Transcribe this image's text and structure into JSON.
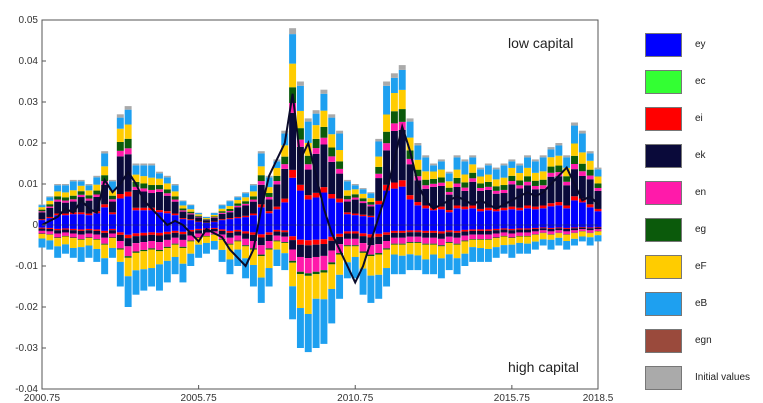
{
  "chart_data": {
    "type": "bar",
    "stacked": true,
    "title": "",
    "xlabel": "",
    "ylabel": "",
    "xlim": [
      2000.75,
      2018.5
    ],
    "ylim": [
      -0.04,
      0.05
    ],
    "x_ticks": [
      "2000.75",
      "2005.75",
      "2010.75",
      "2015.75",
      "2018.5"
    ],
    "y_ticks": [
      "0.05",
      "0.04",
      "0.03",
      "0.02",
      "0.01",
      "0",
      "-0.01",
      "-0.02",
      "-0.03",
      "-0.04"
    ],
    "annotations": {
      "top_right": "low capital",
      "bottom_right": "high capital"
    },
    "legend_position": "right",
    "series": [
      {
        "name": "ey",
        "color": "#0000ff"
      },
      {
        "name": "ec",
        "color": "#33ff33"
      },
      {
        "name": "ei",
        "color": "#ff0000"
      },
      {
        "name": "ek",
        "color": "#0a0a3a"
      },
      {
        "name": "en",
        "color": "#ff1aaa"
      },
      {
        "name": "eg",
        "color": "#0b5a0b"
      },
      {
        "name": "eF",
        "color": "#ffcc00"
      },
      {
        "name": "eB",
        "color": "#1ea0f0"
      },
      {
        "name": "egn",
        "color": "#9a4a3c"
      },
      {
        "name": "Initial values",
        "color": "#aaaaaa"
      }
    ],
    "periods": [
      [
        2000.75,
        0.005,
        -0.0055
      ],
      [
        2001.0,
        0.007,
        -0.006
      ],
      [
        2001.25,
        0.01,
        -0.008
      ],
      [
        2001.5,
        0.01,
        -0.007
      ],
      [
        2001.75,
        0.011,
        -0.008
      ],
      [
        2002.0,
        0.011,
        -0.009
      ],
      [
        2002.25,
        0.01,
        -0.008
      ],
      [
        2002.5,
        0.012,
        -0.009
      ],
      [
        2002.75,
        0.018,
        -0.012
      ],
      [
        2003.0,
        0.011,
        -0.008
      ],
      [
        2003.25,
        0.027,
        -0.015
      ],
      [
        2003.5,
        0.029,
        -0.02
      ],
      [
        2003.75,
        0.015,
        -0.017
      ],
      [
        2004.0,
        0.015,
        -0.016
      ],
      [
        2004.25,
        0.015,
        -0.015
      ],
      [
        2004.5,
        0.013,
        -0.016
      ],
      [
        2004.75,
        0.012,
        -0.014
      ],
      [
        2005.0,
        0.01,
        -0.012
      ],
      [
        2005.25,
        0.006,
        -0.014
      ],
      [
        2005.5,
        0.005,
        -0.01
      ],
      [
        2005.75,
        0.003,
        -0.008
      ],
      [
        2006.0,
        0.002,
        -0.007
      ],
      [
        2006.25,
        0.003,
        -0.006
      ],
      [
        2006.5,
        0.005,
        -0.009
      ],
      [
        2006.75,
        0.006,
        -0.012
      ],
      [
        2007.0,
        0.007,
        -0.01
      ],
      [
        2007.25,
        0.008,
        -0.013
      ],
      [
        2007.5,
        0.01,
        -0.015
      ],
      [
        2007.75,
        0.018,
        -0.019
      ],
      [
        2008.0,
        0.012,
        -0.015
      ],
      [
        2008.25,
        0.016,
        -0.01
      ],
      [
        2008.5,
        0.023,
        -0.011
      ],
      [
        2008.75,
        0.048,
        -0.023
      ],
      [
        2009.0,
        0.035,
        -0.03
      ],
      [
        2009.25,
        0.026,
        -0.031
      ],
      [
        2009.5,
        0.028,
        -0.03
      ],
      [
        2009.75,
        0.033,
        -0.029
      ],
      [
        2010.0,
        0.027,
        -0.024
      ],
      [
        2010.25,
        0.023,
        -0.018
      ],
      [
        2010.5,
        0.011,
        -0.013
      ],
      [
        2010.75,
        0.01,
        -0.013
      ],
      [
        2011.0,
        0.009,
        -0.017
      ],
      [
        2011.25,
        0.008,
        -0.019
      ],
      [
        2011.5,
        0.021,
        -0.018
      ],
      [
        2011.75,
        0.035,
        -0.015
      ],
      [
        2012.0,
        0.037,
        -0.012
      ],
      [
        2012.25,
        0.039,
        -0.012
      ],
      [
        2012.5,
        0.026,
        -0.011
      ],
      [
        2012.75,
        0.02,
        -0.011
      ],
      [
        2013.0,
        0.017,
        -0.012
      ],
      [
        2013.25,
        0.015,
        -0.012
      ],
      [
        2013.5,
        0.016,
        -0.013
      ],
      [
        2013.75,
        0.013,
        -0.011
      ],
      [
        2014.0,
        0.017,
        -0.012
      ],
      [
        2014.25,
        0.016,
        -0.01
      ],
      [
        2014.5,
        0.017,
        -0.009
      ],
      [
        2014.75,
        0.014,
        -0.009
      ],
      [
        2015.0,
        0.015,
        -0.009
      ],
      [
        2015.25,
        0.014,
        -0.008
      ],
      [
        2015.5,
        0.015,
        -0.007
      ],
      [
        2015.75,
        0.016,
        -0.008
      ],
      [
        2016.0,
        0.015,
        -0.007
      ],
      [
        2016.25,
        0.017,
        -0.007
      ],
      [
        2016.5,
        0.016,
        -0.006
      ],
      [
        2016.75,
        0.017,
        -0.005
      ],
      [
        2017.0,
        0.019,
        -0.006
      ],
      [
        2017.25,
        0.02,
        -0.005
      ],
      [
        2017.5,
        0.017,
        -0.006
      ],
      [
        2017.75,
        0.025,
        -0.005
      ],
      [
        2018.0,
        0.023,
        -0.004
      ],
      [
        2018.25,
        0.018,
        -0.005
      ],
      [
        2018.5,
        0.014,
        -0.004
      ]
    ],
    "line": [
      0.0,
      0.001,
      0.002,
      0.004,
      0.003,
      0.006,
      0.004,
      0.003,
      0.011,
      0.008,
      0.01,
      0.013,
      0.01,
      0.006,
      0.004,
      0.002,
      0.0,
      0.001,
      0.0,
      -0.002,
      -0.004,
      -0.001,
      -0.002,
      -0.003,
      -0.006,
      -0.008,
      -0.01,
      -0.006,
      0.004,
      0.012,
      0.016,
      0.02,
      0.032,
      0.016,
      0.02,
      0.012,
      0.004,
      -0.002,
      -0.006,
      -0.01,
      -0.014,
      -0.01,
      -0.004,
      0.002,
      0.008,
      0.016,
      0.024,
      0.018,
      0.01,
      0.006,
      0.004,
      0.005,
      0.006,
      0.007,
      0.006,
      0.005,
      0.006,
      0.005,
      0.004,
      0.005,
      0.006,
      0.007,
      0.008,
      0.007,
      0.008,
      0.01,
      0.012,
      0.014,
      0.01,
      0.006,
      0.007,
      0.005
    ]
  }
}
